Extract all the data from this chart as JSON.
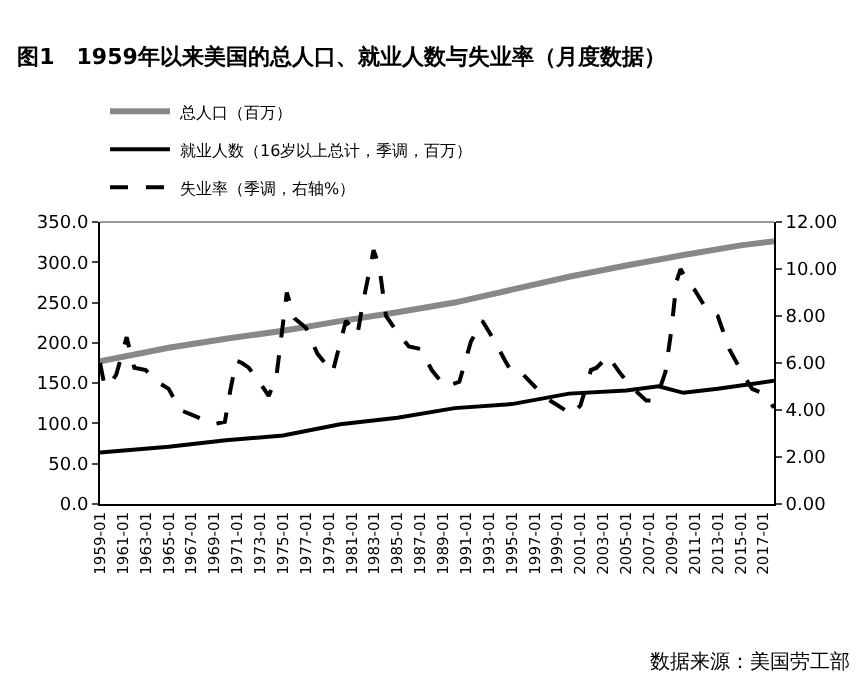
{
  "chart_data": {
    "type": "line",
    "title": "图1　1959年以来美国的总人口、就业人数与失业率（月度数据）",
    "xlim": [
      "1959-01",
      "2017-12"
    ],
    "xticks": [
      "1959-01",
      "1961-01",
      "1963-01",
      "1965-01",
      "1967-01",
      "1969-01",
      "1971-01",
      "1973-01",
      "1975-01",
      "1977-01",
      "1979-01",
      "1981-01",
      "1983-01",
      "1985-01",
      "1987-01",
      "1989-01",
      "1991-01",
      "1993-01",
      "1995-01",
      "1997-01",
      "1999-01",
      "2001-01",
      "2003-01",
      "2005-01",
      "2007-01",
      "2009-01",
      "2011-01",
      "2013-01",
      "2015-01",
      "2017-01"
    ],
    "ylim": [
      0,
      350
    ],
    "yticks": [
      {
        "value": 0,
        "label": "0.0"
      },
      {
        "value": 50,
        "label": "50.0"
      },
      {
        "value": 100,
        "label": "100.0"
      },
      {
        "value": 150,
        "label": "150.0"
      },
      {
        "value": 200,
        "label": "200.0"
      },
      {
        "value": 250,
        "label": "250.0"
      },
      {
        "value": 300,
        "label": "300.0"
      },
      {
        "value": 350,
        "label": "350.0"
      }
    ],
    "y2lim": [
      0,
      12
    ],
    "y2ticks": [
      {
        "value": 0,
        "label": "0.00"
      },
      {
        "value": 2,
        "label": "2.00"
      },
      {
        "value": 4,
        "label": "4.00"
      },
      {
        "value": 6,
        "label": "6.00"
      },
      {
        "value": 8,
        "label": "8.00"
      },
      {
        "value": 10,
        "label": "10.00"
      },
      {
        "value": 12,
        "label": "12.00"
      }
    ],
    "series": [
      {
        "name": "总人口（百万）",
        "color": "#888888",
        "line_style": "solid",
        "x": [
          "1959-01",
          "1965-01",
          "1970-01",
          "1975-01",
          "1980-01",
          "1985-01",
          "1990-01",
          "1995-01",
          "2000-01",
          "2005-01",
          "2010-01",
          "2015-01",
          "2017-12"
        ],
        "values": [
          177,
          194,
          205,
          215,
          227,
          238,
          250,
          266,
          282,
          296,
          309,
          321,
          326
        ]
      },
      {
        "name": "就业人数（16岁以上总计，季调，百万）",
        "color": "#000000",
        "line_style": "solid",
        "x": [
          "1959-01",
          "1965-01",
          "1970-01",
          "1975-01",
          "1980-01",
          "1985-01",
          "1990-01",
          "1995-01",
          "2000-01",
          "2005-01",
          "2007-11",
          "2010-01",
          "2013-01",
          "2017-12"
        ],
        "values": [
          64,
          71,
          79,
          85,
          99,
          107,
          119,
          124,
          137,
          141,
          146,
          138,
          143,
          153
        ]
      },
      {
        "name": "失业率（季调，右轴%）",
        "color": "#000000",
        "line_style": "dashed",
        "axis": "y2",
        "x": [
          "1959-01",
          "1959-06",
          "1960-01",
          "1960-06",
          "1961-05",
          "1962-01",
          "1963-01",
          "1964-01",
          "1965-01",
          "1966-01",
          "1967-01",
          "1968-01",
          "1969-01",
          "1969-12",
          "1970-06",
          "1970-12",
          "1971-06",
          "1972-01",
          "1972-12",
          "1973-10",
          "1974-06",
          "1975-05",
          "1976-01",
          "1977-01",
          "1978-01",
          "1979-05",
          "1980-07",
          "1981-07",
          "1982-01",
          "1982-12",
          "1983-06",
          "1984-01",
          "1985-01",
          "1986-01",
          "1987-01",
          "1988-01",
          "1989-03",
          "1990-06",
          "1991-06",
          "1992-06",
          "1993-06",
          "1994-06",
          "1995-01",
          "1996-01",
          "1997-01",
          "1998-01",
          "1999-01",
          "2000-04",
          "2001-01",
          "2001-12",
          "2002-06",
          "2003-06",
          "2004-06",
          "2005-06",
          "2006-10",
          "2007-05",
          "2008-01",
          "2008-06",
          "2008-12",
          "2009-06",
          "2009-10",
          "2010-06",
          "2011-01",
          "2012-01",
          "2013-01",
          "2014-01",
          "2015-01",
          "2016-01",
          "2017-01",
          "2017-12"
        ],
        "values": [
          6.0,
          5.0,
          5.2,
          5.5,
          7.1,
          5.8,
          5.7,
          5.2,
          4.9,
          4.0,
          3.8,
          3.6,
          3.4,
          3.5,
          4.9,
          6.1,
          6.0,
          5.8,
          5.2,
          4.6,
          5.4,
          9.0,
          7.9,
          7.5,
          6.4,
          5.6,
          7.8,
          7.2,
          8.6,
          10.8,
          10.1,
          8.0,
          7.3,
          6.7,
          6.6,
          5.7,
          5.0,
          5.2,
          6.9,
          7.8,
          7.0,
          6.1,
          5.6,
          5.5,
          5.0,
          4.5,
          4.2,
          3.8,
          4.2,
          5.7,
          5.8,
          6.3,
          5.6,
          5.0,
          4.4,
          4.4,
          5.0,
          5.6,
          7.3,
          9.5,
          10.0,
          9.4,
          9.1,
          8.3,
          8.0,
          6.6,
          5.7,
          4.9,
          4.7,
          4.1
        ]
      }
    ],
    "legend": "top",
    "grid": false,
    "annotations": [
      "数据来源：美国劳工部"
    ]
  }
}
